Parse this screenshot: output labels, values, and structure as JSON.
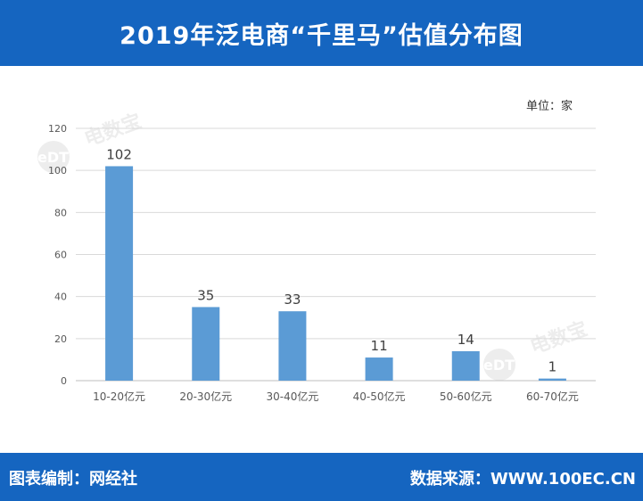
{
  "header": {
    "title": "2019年泛电商“千里马”估值分布图"
  },
  "unit_label": "单位：家",
  "footer": {
    "left_text": "图表编制：网经社",
    "right_text": "数据来源：WWW.100EC.CN"
  },
  "watermark": {
    "brand": "电数宝",
    "mark": "eDT"
  },
  "colors": {
    "bar": "#5b9bd5",
    "header_bg": "#1565c0",
    "grid": "#d9d9d9",
    "axis_text": "#595959"
  },
  "chart_data": {
    "type": "bar",
    "title": "",
    "xlabel": "",
    "ylabel": "",
    "categories": [
      "10-20亿元",
      "20-30亿元",
      "30-40亿元",
      "40-50亿元",
      "50-60亿元",
      "60-70亿元"
    ],
    "values": [
      102,
      35,
      33,
      11,
      14,
      1
    ],
    "ylim": [
      0,
      120
    ],
    "yticks": [
      0,
      20,
      40,
      60,
      80,
      100,
      120
    ],
    "grid": true,
    "legend": "none"
  }
}
